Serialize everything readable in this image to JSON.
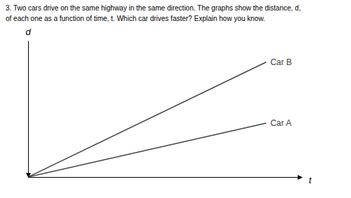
{
  "chart_data": {
    "type": "line",
    "title": "3. Two cars drive on the same highway in the same direction. The graphs show the distance, d,",
    "subtitle": "of each one as a function of time, t. Which car drives faster? Explain how you know.",
    "x_label": "t",
    "y_label": "d",
    "x": [
      0.0,
      1.0
    ],
    "series": [
      {
        "name": "Car B",
        "color": "#444444",
        "values": [
          0.0,
          3.2
        ]
      },
      {
        "name": "Car A",
        "color": "#444444",
        "values": [
          0.0,
          1.5
        ]
      }
    ],
    "xlim": [
      0.0,
      1.15
    ],
    "ylim": [
      0.0,
      3.8
    ],
    "tick_labels": false
  }
}
